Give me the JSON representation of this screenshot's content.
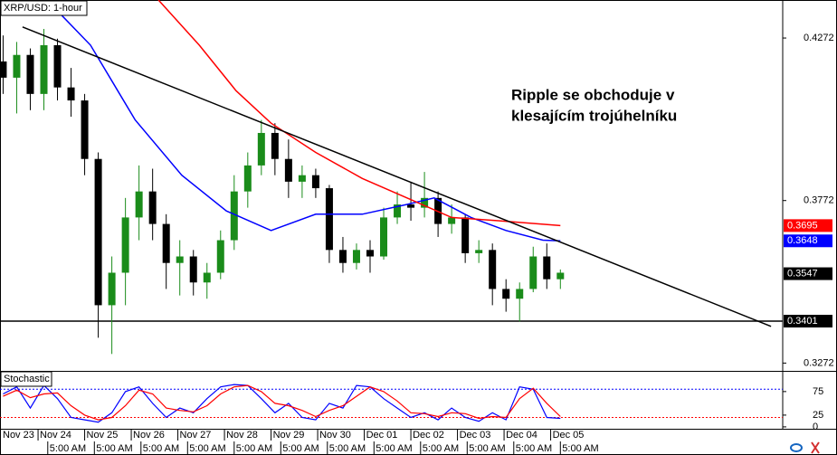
{
  "chart_data": [
    {
      "type": "candlestick",
      "title": "XRP/USD: 1-hour",
      "annotations": [
        "Ripple se obchoduje v",
        "klesajícím trojúhelníku"
      ],
      "x": [
        6,
        13,
        20,
        27,
        34,
        41,
        48,
        55,
        62,
        69,
        76,
        83,
        90,
        97,
        104,
        111,
        118,
        125,
        132,
        139,
        146,
        153,
        160,
        167,
        174,
        181,
        188,
        195,
        202,
        209,
        216,
        223,
        230,
        237,
        244,
        251,
        258,
        265,
        272,
        279,
        286,
        293
      ],
      "open": [
        0.42,
        0.415,
        0.422,
        0.41,
        0.425,
        0.412,
        0.408,
        0.39,
        0.345,
        0.355,
        0.372,
        0.38,
        0.37,
        0.358,
        0.36,
        0.352,
        0.355,
        0.365,
        0.38,
        0.388,
        0.398,
        0.39,
        0.383,
        0.385,
        0.381,
        0.362,
        0.358,
        0.362,
        0.36,
        0.372,
        0.376,
        0.375,
        0.378,
        0.37,
        0.372,
        0.361,
        0.362,
        0.35,
        0.347,
        0.35,
        0.36,
        0.353
      ],
      "high": [
        0.428,
        0.426,
        0.424,
        0.43,
        0.427,
        0.418,
        0.41,
        0.392,
        0.36,
        0.378,
        0.388,
        0.387,
        0.373,
        0.365,
        0.362,
        0.358,
        0.368,
        0.385,
        0.392,
        0.402,
        0.401,
        0.396,
        0.388,
        0.387,
        0.382,
        0.366,
        0.364,
        0.365,
        0.375,
        0.38,
        0.383,
        0.386,
        0.38,
        0.376,
        0.373,
        0.365,
        0.364,
        0.353,
        0.352,
        0.363,
        0.364,
        0.356
      ],
      "low": [
        0.41,
        0.404,
        0.405,
        0.405,
        0.408,
        0.403,
        0.385,
        0.335,
        0.33,
        0.345,
        0.365,
        0.365,
        0.35,
        0.348,
        0.348,
        0.347,
        0.353,
        0.362,
        0.375,
        0.385,
        0.385,
        0.378,
        0.378,
        0.378,
        0.358,
        0.355,
        0.356,
        0.355,
        0.359,
        0.37,
        0.371,
        0.372,
        0.366,
        0.367,
        0.358,
        0.358,
        0.345,
        0.343,
        0.34,
        0.349,
        0.35,
        0.35
      ],
      "close": [
        0.415,
        0.422,
        0.41,
        0.425,
        0.412,
        0.408,
        0.39,
        0.345,
        0.355,
        0.372,
        0.38,
        0.37,
        0.358,
        0.36,
        0.352,
        0.355,
        0.365,
        0.38,
        0.388,
        0.398,
        0.39,
        0.383,
        0.385,
        0.381,
        0.362,
        0.358,
        0.362,
        0.36,
        0.372,
        0.376,
        0.375,
        0.378,
        0.37,
        0.372,
        0.361,
        0.362,
        0.35,
        0.347,
        0.35,
        0.36,
        0.353,
        0.355
      ],
      "up_color": "#1a8c1a",
      "down_color": "#000000",
      "overlays": [
        {
          "color": "#0000ff",
          "x": [
            30,
            51,
            74,
            98,
            121,
            144,
            167,
            191,
            214,
            228,
            247,
            265,
            284,
            293
          ],
          "values": [
            0.438,
            0.425,
            0.402,
            0.385,
            0.374,
            0.368,
            0.373,
            0.373,
            0.376,
            0.378,
            0.372,
            0.368,
            0.365,
            0.3648
          ]
        },
        {
          "color": "#ff0000",
          "x": [
            86,
            107,
            126,
            144,
            167,
            191,
            214,
            237,
            261,
            293
          ],
          "values": [
            0.4389,
            0.425,
            0.411,
            0.401,
            0.392,
            0.384,
            0.378,
            0.372,
            0.371,
            0.3695
          ]
        }
      ],
      "trendlines": [
        {
          "color": "#000000",
          "x": [
            16,
            401.5
          ],
          "values": [
            0.4306,
            0.3385
          ]
        }
      ],
      "hlines": [
        {
          "color": "#000000",
          "value": 0.3401
        }
      ],
      "price_labels": [
        {
          "value": 0.3695,
          "color": "#ff0000"
        },
        {
          "value": 0.3648,
          "color": "#0000ff"
        },
        {
          "value": 0.3547,
          "color": "#000000"
        },
        {
          "value": 0.3401,
          "color": "#000000"
        }
      ],
      "xlim": [
        4.4,
        407.5
      ],
      "ylim": [
        0.3248,
        0.4389
      ],
      "yticks": [
        0.4272,
        0.3772,
        0.3272
      ],
      "xticks": [
        {
          "value": 0,
          "label": "Nov 23"
        },
        {
          "value": 24,
          "label": "Nov 24"
        },
        {
          "value": 48,
          "label": "Nov 25"
        },
        {
          "value": 72,
          "label": "Nov 26"
        },
        {
          "value": 96,
          "label": "Nov 27"
        },
        {
          "value": 120,
          "label": "Nov 28"
        },
        {
          "value": 144,
          "label": "Nov 29"
        },
        {
          "value": 168,
          "label": "Nov 30"
        },
        {
          "value": 192,
          "label": "Dec 01"
        },
        {
          "value": 216,
          "label": "Dec 02"
        },
        {
          "value": 240,
          "label": "Dec 03"
        },
        {
          "value": 264,
          "label": "Dec 04"
        },
        {
          "value": 288,
          "label": "Dec 05"
        }
      ],
      "xticks_minor": [
        {
          "value": 29,
          "label": "5:00 AM"
        },
        {
          "value": 53,
          "label": "5:00 AM"
        },
        {
          "value": 77,
          "label": "5:00 AM"
        },
        {
          "value": 101,
          "label": "5:00 AM"
        },
        {
          "value": 125,
          "label": "5:00 AM"
        },
        {
          "value": 149,
          "label": "5:00 AM"
        },
        {
          "value": 173,
          "label": "5:00 AM"
        },
        {
          "value": 197,
          "label": "5:00 AM"
        },
        {
          "value": 221,
          "label": "5:00 AM"
        },
        {
          "value": 245,
          "label": "5:00 AM"
        },
        {
          "value": 269,
          "label": "5:00 AM"
        },
        {
          "value": 293,
          "label": "5:00 AM"
        }
      ]
    },
    {
      "type": "line",
      "title": "Stochastic",
      "x": [
        6,
        13,
        20,
        27,
        34,
        41,
        48,
        55,
        62,
        69,
        76,
        83,
        90,
        97,
        104,
        111,
        118,
        125,
        132,
        139,
        146,
        153,
        160,
        167,
        174,
        181,
        188,
        195,
        202,
        209,
        216,
        223,
        230,
        237,
        244,
        251,
        258,
        265,
        272,
        279,
        286,
        293
      ],
      "series": [
        {
          "color": "#0000ff",
          "values": [
            70,
            85,
            40,
            88,
            60,
            20,
            15,
            10,
            30,
            75,
            85,
            50,
            20,
            40,
            30,
            60,
            85,
            90,
            88,
            60,
            30,
            50,
            20,
            15,
            50,
            40,
            88,
            85,
            60,
            40,
            20,
            30,
            15,
            40,
            20,
            12,
            30,
            15,
            85,
            80,
            20,
            18
          ]
        },
        {
          "color": "#ff0000",
          "values": [
            65,
            78,
            62,
            70,
            72,
            45,
            25,
            15,
            20,
            45,
            78,
            70,
            40,
            35,
            32,
            45,
            70,
            85,
            88,
            75,
            50,
            45,
            35,
            22,
            35,
            45,
            65,
            85,
            75,
            55,
            30,
            28,
            22,
            30,
            28,
            18,
            22,
            20,
            60,
            82,
            50,
            22
          ]
        }
      ],
      "levels": [
        80,
        20
      ],
      "xlim": [
        4.4,
        407.5
      ],
      "ylim": [
        -4,
        117
      ],
      "yticks": [
        75,
        25,
        0
      ]
    }
  ]
}
